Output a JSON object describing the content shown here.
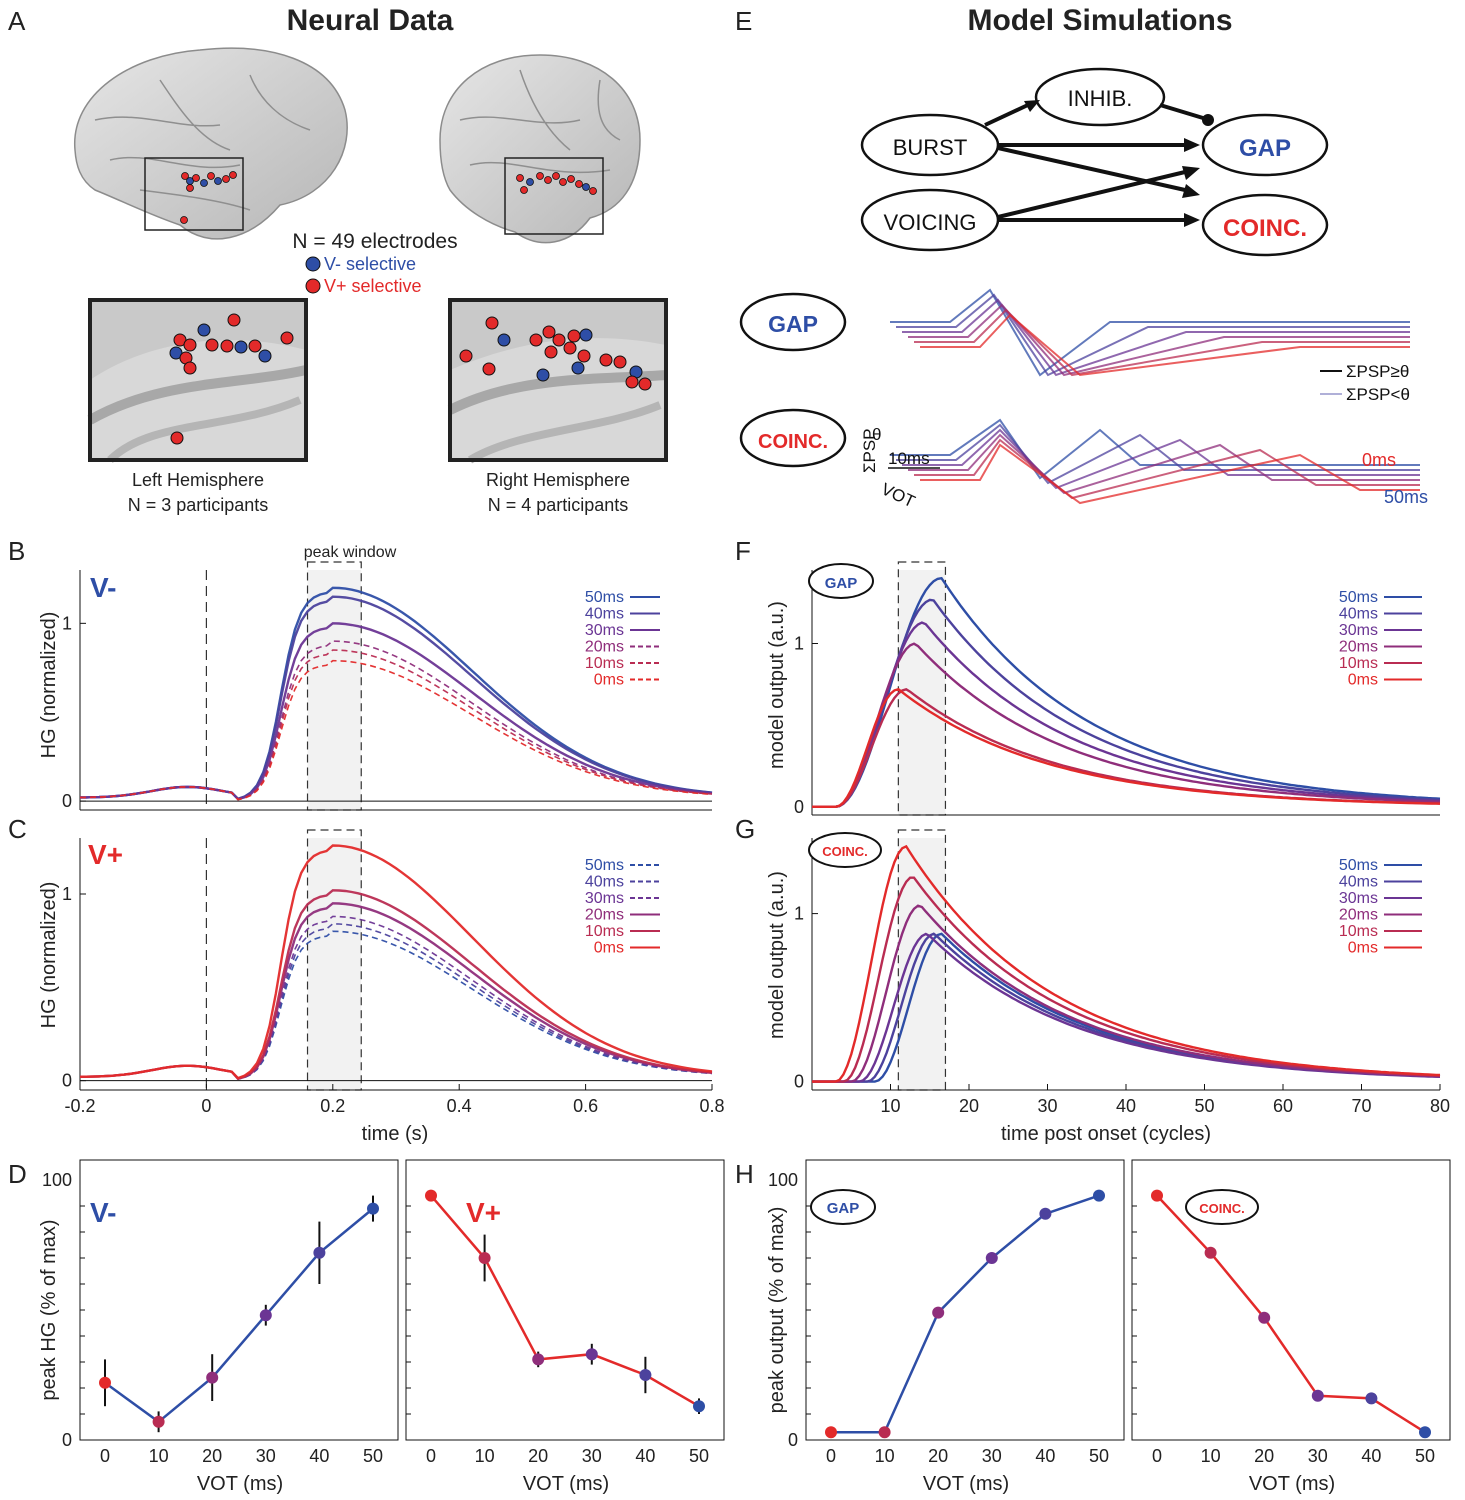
{
  "colors": {
    "blue": "#2e4ea6",
    "red": "#e32a2a",
    "purple": "#7a2f8f",
    "magenta": "#a8337a",
    "black": "#111111",
    "brain": "#cfcfcf",
    "brain_dark": "#9a9a9a",
    "shade": "#f2f2f2"
  },
  "panels": {
    "A": "A",
    "B": "B",
    "C": "C",
    "D": "D",
    "E": "E",
    "F": "F",
    "G": "G",
    "H": "H"
  },
  "titles": {
    "left": "Neural Data",
    "right": "Model Simulations"
  },
  "panel_a": {
    "electrodes": "N = 49 electrodes",
    "v_minus": "V- selective",
    "v_plus": "V+ selective",
    "left_hemi": "Left Hemisphere",
    "left_n": "N = 3 participants",
    "right_hemi": "Right Hemisphere",
    "right_n": "N = 4 participants"
  },
  "panel_e": {
    "burst": "BURST",
    "inhib": "INHIB.",
    "voicing": "VOICING",
    "gap": "GAP",
    "coinc": "COINC.",
    "psp_above": "ΣPSP≥θ",
    "psp_below": "ΣPSP<θ",
    "sum_psp": "ΣPSP",
    "theta": "θ",
    "ten_ms": "10ms",
    "vot": "VOT",
    "zero_ms": "0ms",
    "fifty_ms": "50ms"
  },
  "peak_window_label": "peak window",
  "labels": {
    "v_minus": "V-",
    "v_plus": "V+",
    "hg_ylabel": "HG (normalized)",
    "time_xlabel": "time (s)",
    "model_ylabel": "model output (a.u.)",
    "cycles_xlabel": "time post onset (cycles)",
    "peak_hg_ylabel": "peak HG (% of max)",
    "peak_out_ylabel": "peak output (% of max)",
    "vot_xlabel": "VOT (ms)",
    "gap_badge": "GAP",
    "coinc_badge": "COINC."
  },
  "chart_data": [
    {
      "id": "B",
      "type": "line",
      "title": "V-",
      "xlabel": "time (s)",
      "ylabel": "HG (normalized)",
      "xlim": [
        -0.2,
        0.8
      ],
      "ylim": [
        -0.05,
        1.3
      ],
      "xticks": [
        "-0.2",
        "0",
        "0.2",
        "0.4",
        "0.6",
        "0.8"
      ],
      "yticks": [
        "0",
        "1"
      ],
      "peak_window": [
        0.16,
        0.245
      ],
      "series": [
        {
          "name": "50ms",
          "peak": 1.18,
          "style": "solid"
        },
        {
          "name": "40ms",
          "peak": 1.13,
          "style": "solid"
        },
        {
          "name": "30ms",
          "peak": 0.98,
          "style": "solid"
        },
        {
          "name": "20ms",
          "peak": 0.88,
          "style": "dashed"
        },
        {
          "name": "10ms",
          "peak": 0.83,
          "style": "dashed"
        },
        {
          "name": "0ms",
          "peak": 0.77,
          "style": "dashed"
        }
      ]
    },
    {
      "id": "C",
      "type": "line",
      "title": "V+",
      "xlabel": "time (s)",
      "ylabel": "HG (normalized)",
      "xlim": [
        -0.2,
        0.8
      ],
      "ylim": [
        -0.05,
        1.3
      ],
      "xticks": [
        "-0.2",
        "0",
        "0.2",
        "0.4",
        "0.6",
        "0.8"
      ],
      "yticks": [
        "0",
        "1"
      ],
      "peak_window": [
        0.16,
        0.245
      ],
      "series": [
        {
          "name": "50ms",
          "peak": 0.78,
          "style": "dashed"
        },
        {
          "name": "40ms",
          "peak": 0.82,
          "style": "dashed"
        },
        {
          "name": "30ms",
          "peak": 0.86,
          "style": "dashed"
        },
        {
          "name": "20ms",
          "peak": 0.93,
          "style": "solid"
        },
        {
          "name": "10ms",
          "peak": 1.0,
          "style": "solid"
        },
        {
          "name": "0ms",
          "peak": 1.24,
          "style": "solid"
        }
      ]
    },
    {
      "id": "F",
      "type": "line",
      "title": "GAP",
      "xlabel": "",
      "ylabel": "model output (a.u.)",
      "xlim": [
        0,
        80
      ],
      "ylim": [
        -0.05,
        1.45
      ],
      "yticks": [
        "0",
        "1"
      ],
      "series": [
        {
          "name": "50ms",
          "peak": 1.4,
          "onset": 3
        },
        {
          "name": "40ms",
          "peak": 1.27,
          "onset": 3
        },
        {
          "name": "30ms",
          "peak": 1.13,
          "onset": 3
        },
        {
          "name": "20ms",
          "peak": 1.0,
          "onset": 3
        },
        {
          "name": "10ms",
          "peak": 0.72,
          "onset": 3
        },
        {
          "name": "0ms",
          "peak": 0.72,
          "onset": 3
        }
      ]
    },
    {
      "id": "G",
      "type": "line",
      "title": "COINC.",
      "xlabel": "time post onset (cycles)",
      "ylabel": "model output (a.u.)",
      "xlim": [
        0,
        80
      ],
      "ylim": [
        -0.05,
        1.45
      ],
      "xticks": [
        "10",
        "20",
        "30",
        "40",
        "50",
        "60",
        "70",
        "80"
      ],
      "yticks": [
        "0",
        "1"
      ],
      "series": [
        {
          "name": "50ms",
          "peak": 0.88,
          "onset": 8
        },
        {
          "name": "40ms",
          "peak": 0.88,
          "onset": 7
        },
        {
          "name": "30ms",
          "peak": 0.88,
          "onset": 6
        },
        {
          "name": "20ms",
          "peak": 1.05,
          "onset": 5
        },
        {
          "name": "10ms",
          "peak": 1.22,
          "onset": 4
        },
        {
          "name": "0ms",
          "peak": 1.4,
          "onset": 3
        }
      ]
    },
    {
      "id": "D-left",
      "type": "line",
      "title": "V-",
      "xlabel": "VOT (ms)",
      "ylabel": "peak HG (% of max)",
      "x": [
        0,
        10,
        20,
        30,
        40,
        50
      ],
      "y": [
        22,
        7,
        24,
        48,
        72,
        89
      ],
      "err": [
        9,
        4,
        9,
        4,
        12,
        5
      ],
      "ylim": [
        0,
        100
      ],
      "xticks": [
        "0",
        "10",
        "20",
        "30",
        "40",
        "50"
      ],
      "yticks": [
        "0",
        "100"
      ]
    },
    {
      "id": "D-right",
      "type": "line",
      "title": "V+",
      "xlabel": "VOT (ms)",
      "ylabel": "",
      "x": [
        0,
        10,
        20,
        30,
        40,
        50
      ],
      "y": [
        94,
        70,
        31,
        33,
        25,
        13
      ],
      "err": [
        0,
        9,
        3,
        4,
        7,
        3
      ],
      "ylim": [
        0,
        100
      ],
      "xticks": [
        "0",
        "10",
        "20",
        "30",
        "40",
        "50"
      ]
    },
    {
      "id": "H-left",
      "type": "line",
      "title": "GAP",
      "xlabel": "VOT (ms)",
      "ylabel": "peak output (% of max)",
      "x": [
        0,
        10,
        20,
        30,
        40,
        50
      ],
      "y": [
        3,
        3,
        49,
        70,
        87,
        94
      ],
      "ylim": [
        0,
        100
      ],
      "xticks": [
        "0",
        "10",
        "20",
        "30",
        "40",
        "50"
      ],
      "yticks": [
        "0",
        "100"
      ]
    },
    {
      "id": "H-right",
      "type": "line",
      "title": "COINC.",
      "xlabel": "VOT (ms)",
      "ylabel": "",
      "x": [
        0,
        10,
        20,
        30,
        40,
        50
      ],
      "y": [
        94,
        72,
        47,
        17,
        16,
        3
      ],
      "ylim": [
        0,
        100
      ],
      "xticks": [
        "0",
        "10",
        "20",
        "30",
        "40",
        "50"
      ]
    }
  ]
}
